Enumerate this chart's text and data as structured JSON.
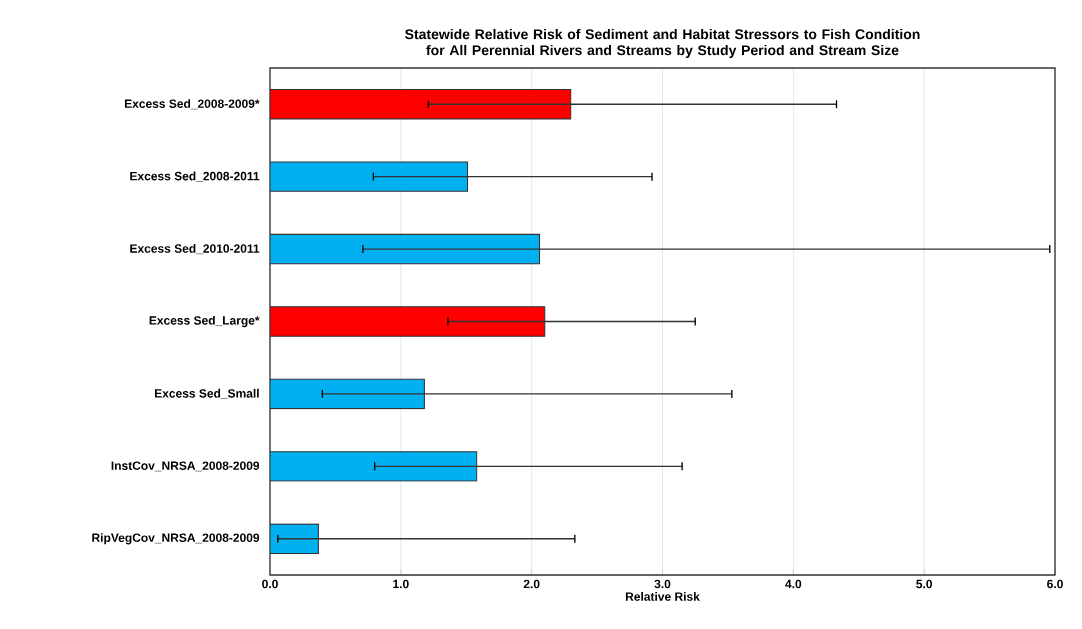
{
  "chart_data": {
    "type": "bar",
    "orientation": "horizontal",
    "title": "Statewide Relative Risk of Sediment and Habitat Stressors to Fish Condition for All Perennial Rivers and Streams by Study Period and Stream Size",
    "xlabel": "Relative Risk",
    "categories": [
      "Excess Sed_2008-2009*",
      "Excess Sed_2008-2011",
      "Excess Sed_2010-2011",
      "Excess Sed_Large*",
      "Excess Sed_Small",
      "InstCov_NRSA_2008-2009",
      "RipVegCov_NRSA_2008-2009"
    ],
    "values": [
      2.3,
      1.51,
      2.06,
      2.1,
      1.18,
      1.58,
      0.37
    ],
    "colors": [
      "#ff0000",
      "#00b0f0",
      "#00b0f0",
      "#ff0000",
      "#00b0f0",
      "#00b0f0",
      "#00b0f0"
    ],
    "errors": [
      [
        1.21,
        4.33
      ],
      [
        0.79,
        2.92
      ],
      [
        0.71,
        5.96
      ],
      [
        1.36,
        3.25
      ],
      [
        0.4,
        3.53
      ],
      [
        0.8,
        3.15
      ],
      [
        0.06,
        2.33
      ]
    ],
    "xlim": [
      0,
      6
    ],
    "xticks": [
      {
        "value": 0,
        "label": "0.0"
      },
      {
        "value": 1,
        "label": "1.0"
      },
      {
        "value": 2,
        "label": "2.0"
      },
      {
        "value": 3,
        "label": "3.0"
      },
      {
        "value": 4,
        "label": "4.0"
      },
      {
        "value": 5,
        "label": "5.0"
      },
      {
        "value": 6,
        "label": "6.0"
      }
    ],
    "grid": "x"
  }
}
